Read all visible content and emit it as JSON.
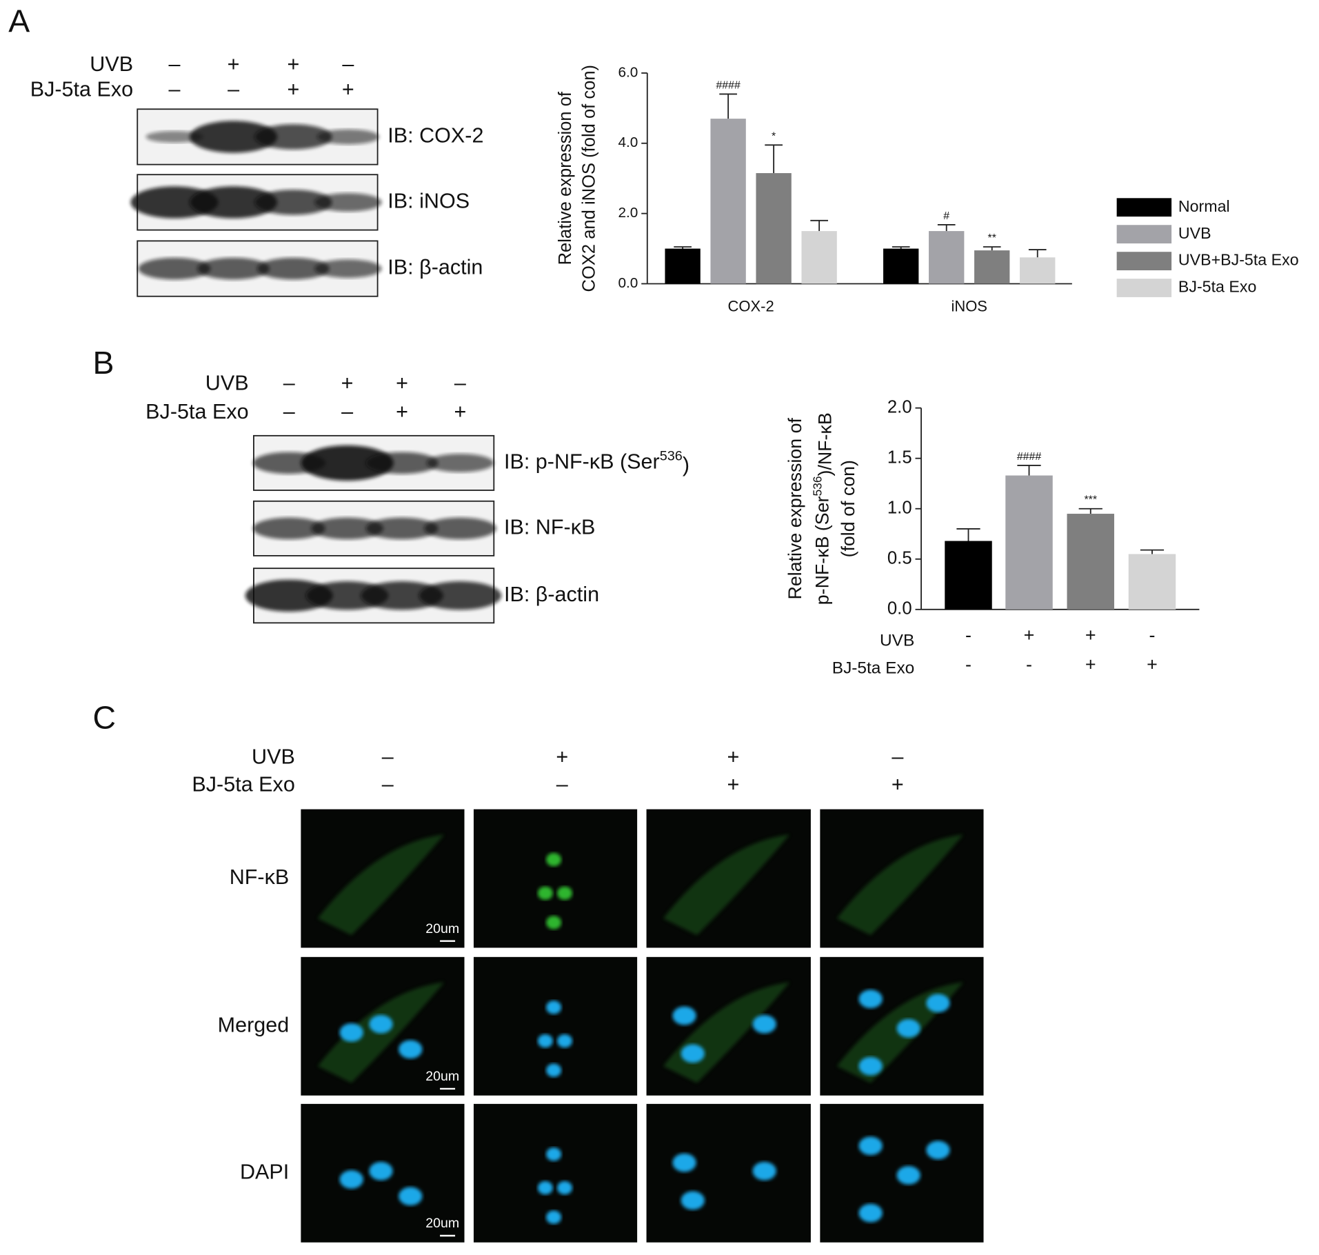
{
  "panels": {
    "A": {
      "letter": "A",
      "conditions": [
        {
          "name": "UVB",
          "signs": [
            "–",
            "+",
            "+",
            "–"
          ]
        },
        {
          "name": "BJ-5ta Exo",
          "signs": [
            "–",
            "–",
            "+",
            "+"
          ]
        }
      ],
      "blots": [
        "IB: COX-2",
        "IB: iNOS",
        "IB: β-actin"
      ]
    },
    "B": {
      "letter": "B",
      "conditions": [
        {
          "name": "UVB",
          "signs": [
            "–",
            "+",
            "+",
            "–"
          ]
        },
        {
          "name": "BJ-5ta Exo",
          "signs": [
            "–",
            "–",
            "+",
            "+"
          ]
        }
      ],
      "blots": [
        {
          "pre": "IB: p-NF-κB (Ser",
          "sup": "536",
          "post": ")"
        },
        "IB: NF-κB",
        "IB: β-actin"
      ]
    },
    "C": {
      "letter": "C",
      "conditions": [
        {
          "name": "UVB",
          "signs": [
            "–",
            "+",
            "+",
            "–"
          ]
        },
        {
          "name": "BJ-5ta Exo",
          "signs": [
            "–",
            "–",
            "+",
            "+"
          ]
        }
      ],
      "rows": [
        "NF-κB",
        "Merged",
        "DAPI"
      ],
      "scale_bar": "20um"
    }
  },
  "chart_data": [
    {
      "type": "grouped_bar",
      "ylabel": [
        "Relative expression of",
        "COX2 and iNOS (fold of con)"
      ],
      "categories": [
        "COX-2",
        "iNOS"
      ],
      "series": [
        {
          "name": "Normal",
          "color": "#000000",
          "values": [
            1.0,
            1.0
          ],
          "errors": [
            0.05,
            0.05
          ],
          "annotations": [
            null,
            null
          ]
        },
        {
          "name": "UVB",
          "color": "#a3a3a8",
          "values": [
            4.7,
            1.5
          ],
          "errors": [
            0.7,
            0.18
          ],
          "annotations": [
            "####",
            "#"
          ]
        },
        {
          "name": "UVB+BJ-5ta Exo",
          "color": "#7f7f7f",
          "values": [
            3.15,
            0.95
          ],
          "errors": [
            0.8,
            0.1
          ],
          "annotations": [
            "*",
            "**"
          ]
        },
        {
          "name": "BJ-5ta Exo",
          "color": "#d4d4d4",
          "values": [
            1.5,
            0.75
          ],
          "errors": [
            0.3,
            0.22
          ],
          "annotations": [
            null,
            null
          ]
        }
      ],
      "ylim": [
        0,
        6
      ],
      "yticks": [
        {
          "value": 0,
          "label": "0.0"
        },
        {
          "value": 2,
          "label": "2.0"
        },
        {
          "value": 4,
          "label": "4.0"
        },
        {
          "value": 6,
          "label": "6.0"
        }
      ],
      "legend": "right"
    },
    {
      "type": "bar",
      "ylabel": [
        "Relative expression of",
        {
          "pre": "p-NF-κB (Ser",
          "sup": "536",
          "post": ")/NF-κB"
        },
        "(fold of con)"
      ],
      "values": [
        0.68,
        1.33,
        0.95,
        0.55
      ],
      "errors": [
        0.12,
        0.1,
        0.05,
        0.04
      ],
      "colors": [
        "#000000",
        "#a3a3a8",
        "#7f7f7f",
        "#d4d4d4"
      ],
      "annotations": [
        null,
        "####",
        "***",
        null
      ],
      "conditions": [
        {
          "name": "UVB",
          "signs": [
            "-",
            "+",
            "+",
            "-"
          ]
        },
        {
          "name": "BJ-5ta Exo",
          "signs": [
            "-",
            "-",
            "+",
            "+"
          ]
        }
      ],
      "ylim": [
        0,
        2
      ],
      "yticks": [
        {
          "value": 0,
          "label": "0.0"
        },
        {
          "value": 0.5,
          "label": "0.5"
        },
        {
          "value": 1,
          "label": "1.0"
        },
        {
          "value": 1.5,
          "label": "1.5"
        },
        {
          "value": 2,
          "label": "2.0"
        }
      ]
    }
  ]
}
